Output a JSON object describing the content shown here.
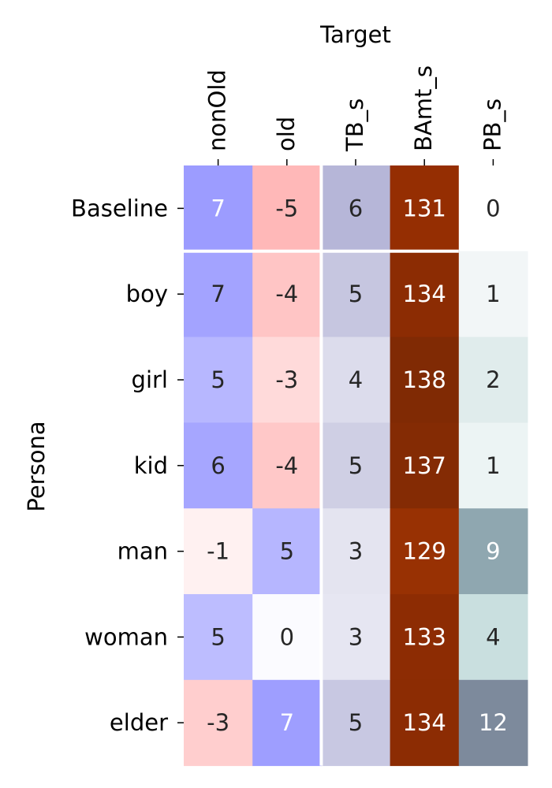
{
  "chart_data": {
    "type": "heatmap",
    "title": "",
    "xlabel": "Target",
    "ylabel": "Persona",
    "columns": [
      "nonOld",
      "old",
      "TB_s",
      "BAmt_s",
      "PB_s"
    ],
    "rows": [
      "Baseline",
      "boy",
      "girl",
      "kid",
      "man",
      "woman",
      "elder"
    ],
    "values": [
      [
        7,
        -5,
        6,
        131,
        0
      ],
      [
        7,
        -4,
        5,
        134,
        1
      ],
      [
        5,
        -3,
        4,
        138,
        2
      ],
      [
        6,
        -4,
        5,
        137,
        1
      ],
      [
        -1,
        5,
        3,
        129,
        9
      ],
      [
        5,
        0,
        3,
        133,
        4
      ],
      [
        -3,
        7,
        5,
        134,
        12
      ]
    ],
    "cell_colors": [
      [
        "#9c9cff",
        "#ffb8b8",
        "#b6b6d8",
        "#952e02",
        "#ffffff"
      ],
      [
        "#a3a3ff",
        "#ffc5c5",
        "#c6c6e0",
        "#8c2c03",
        "#f2f6f7"
      ],
      [
        "#b7b7ff",
        "#ffdada",
        "#dcdcec",
        "#802a04",
        "#e0ecec"
      ],
      [
        "#a6a6ff",
        "#ffc8c8",
        "#cfcfe4",
        "#842b04",
        "#ecf4f4"
      ],
      [
        "#fff1f1",
        "#b6b6ff",
        "#e4e4f0",
        "#983103",
        "#8fa7b0"
      ],
      [
        "#bdbdff",
        "#fbfbff",
        "#e6e6f2",
        "#8d2c03",
        "#c9dfdf"
      ],
      [
        "#ffcece",
        "#9e9eff",
        "#c8c8e2",
        "#8c2c03",
        "#7d8a9c"
      ]
    ],
    "text_colors": [
      [
        "#ffffff",
        "#262626",
        "#262626",
        "#ffffff",
        "#262626"
      ],
      [
        "#262626",
        "#262626",
        "#262626",
        "#ffffff",
        "#262626"
      ],
      [
        "#262626",
        "#262626",
        "#262626",
        "#ffffff",
        "#262626"
      ],
      [
        "#262626",
        "#262626",
        "#262626",
        "#ffffff",
        "#262626"
      ],
      [
        "#262626",
        "#262626",
        "#262626",
        "#ffffff",
        "#ffffff"
      ],
      [
        "#262626",
        "#262626",
        "#262626",
        "#ffffff",
        "#262626"
      ],
      [
        "#262626",
        "#ffffff",
        "#262626",
        "#ffffff",
        "#ffffff"
      ]
    ],
    "separator_after_row": "Baseline",
    "separator_after_column": "old",
    "separator_color": "#ffffff"
  }
}
